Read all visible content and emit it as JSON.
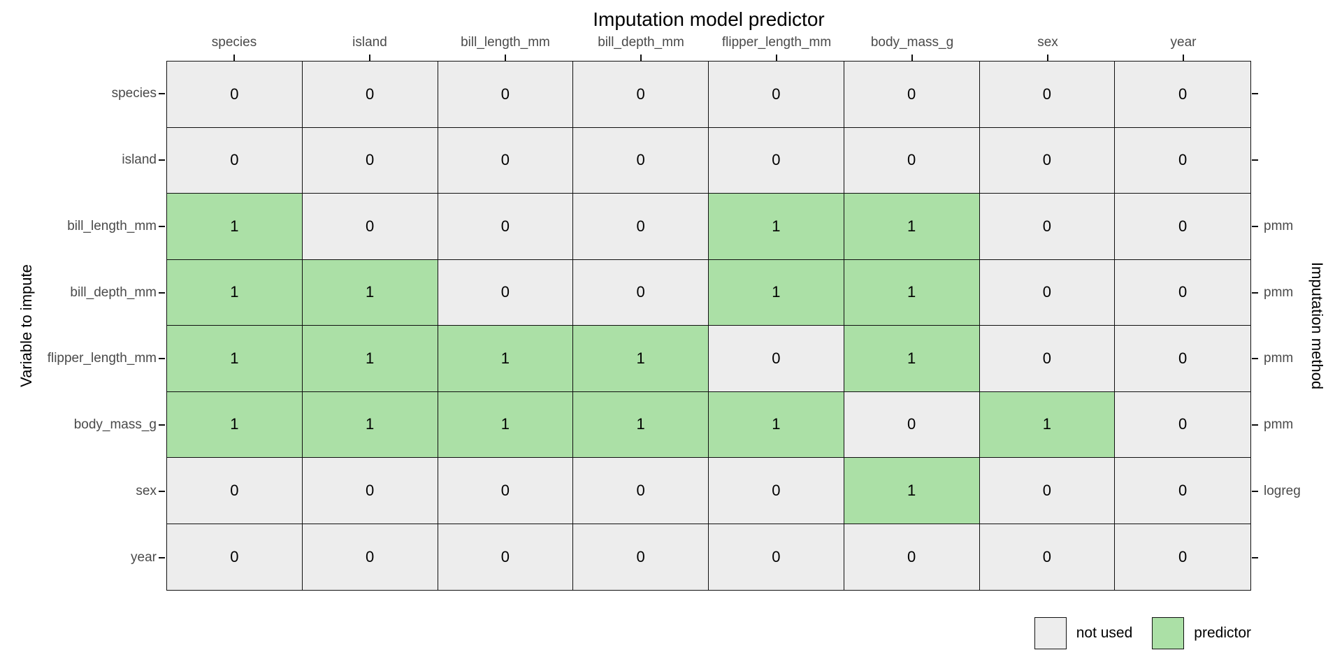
{
  "chart_data": {
    "type": "heatmap",
    "title": "Imputation model predictor",
    "xlabel": "Imputation model predictor",
    "ylabel_left": "Variable to impute",
    "ylabel_right": "Imputation method",
    "columns": [
      "species",
      "island",
      "bill_length_mm",
      "bill_depth_mm",
      "flipper_length_mm",
      "body_mass_g",
      "sex",
      "year"
    ],
    "rows": [
      "species",
      "island",
      "bill_length_mm",
      "bill_depth_mm",
      "flipper_length_mm",
      "body_mass_g",
      "sex",
      "year"
    ],
    "matrix": [
      [
        0,
        0,
        0,
        0,
        0,
        0,
        0,
        0
      ],
      [
        0,
        0,
        0,
        0,
        0,
        0,
        0,
        0
      ],
      [
        1,
        0,
        0,
        0,
        1,
        1,
        0,
        0
      ],
      [
        1,
        1,
        0,
        0,
        1,
        1,
        0,
        0
      ],
      [
        1,
        1,
        1,
        1,
        0,
        1,
        0,
        0
      ],
      [
        1,
        1,
        1,
        1,
        1,
        0,
        1,
        0
      ],
      [
        0,
        0,
        0,
        0,
        0,
        1,
        0,
        0
      ],
      [
        0,
        0,
        0,
        0,
        0,
        0,
        0,
        0
      ]
    ],
    "methods": [
      "",
      "",
      "pmm",
      "pmm",
      "pmm",
      "pmm",
      "logreg",
      ""
    ],
    "legend": [
      {
        "label": "not used",
        "value": 0,
        "color": "#EDEDED"
      },
      {
        "label": "predictor",
        "value": 1,
        "color": "#ABE0A6"
      }
    ],
    "layout": {
      "grid": "off",
      "legend_position": "bottom-right",
      "tick_label_color": "#4a4a4a",
      "border_color": "#101010"
    }
  }
}
